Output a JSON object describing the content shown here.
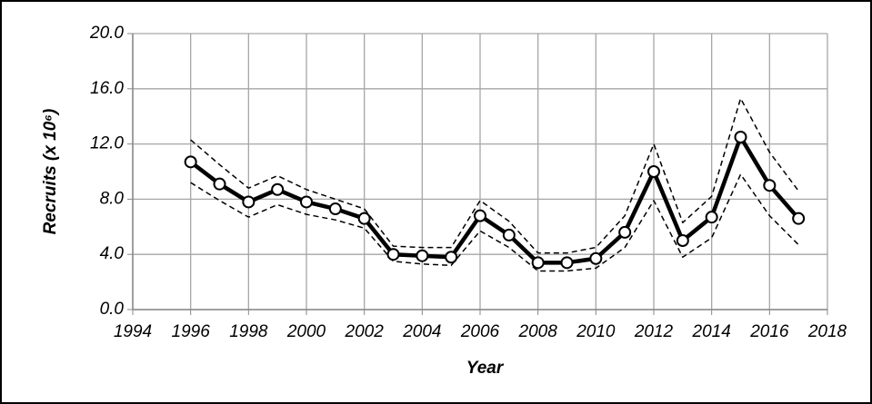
{
  "chart_data": {
    "type": "line",
    "xlabel": "Year",
    "ylabel": "Recruits (x 10⁶)",
    "x": [
      1996,
      1997,
      1998,
      1999,
      2000,
      2001,
      2002,
      2003,
      2004,
      2005,
      2006,
      2007,
      2008,
      2009,
      2010,
      2011,
      2012,
      2013,
      2014,
      2015,
      2016,
      2017
    ],
    "series": [
      {
        "color": "#000000",
        "markers": true,
        "dashed": false,
        "values": [
          10.7,
          9.1,
          7.8,
          8.7,
          7.8,
          7.3,
          6.6,
          4.0,
          3.9,
          3.8,
          6.8,
          5.4,
          3.4,
          3.4,
          3.7,
          5.6,
          10.0,
          5.0,
          6.7,
          12.5,
          9.0,
          6.6
        ]
      },
      {
        "color": "#000000",
        "markers": false,
        "dashed": true,
        "values": [
          12.3,
          10.5,
          8.8,
          9.7,
          8.7,
          8.0,
          7.3,
          4.6,
          4.5,
          4.5,
          7.9,
          6.4,
          4.1,
          4.1,
          4.5,
          6.8,
          12.0,
          6.3,
          8.2,
          15.3,
          11.4,
          8.6
        ]
      },
      {
        "color": "#000000",
        "markers": false,
        "dashed": true,
        "values": [
          9.2,
          7.9,
          6.7,
          7.6,
          6.9,
          6.5,
          5.9,
          3.5,
          3.3,
          3.2,
          5.7,
          4.5,
          2.8,
          2.8,
          3.0,
          4.5,
          7.9,
          3.8,
          5.2,
          9.8,
          6.8,
          4.7
        ]
      }
    ],
    "xlim": [
      1994,
      2018
    ],
    "xticks": [
      1994,
      1996,
      1998,
      2000,
      2002,
      2004,
      2006,
      2008,
      2010,
      2012,
      2014,
      2016,
      2018
    ],
    "ylim": [
      0,
      20
    ],
    "yticks": [
      {
        "value": 0,
        "label": "0.0"
      },
      {
        "value": 4,
        "label": "4.0"
      },
      {
        "value": 8,
        "label": "8.0"
      },
      {
        "value": 12,
        "label": "12.0"
      },
      {
        "value": 16,
        "label": "16.0"
      },
      {
        "value": 20,
        "label": "20.0"
      }
    ],
    "grid": true
  }
}
